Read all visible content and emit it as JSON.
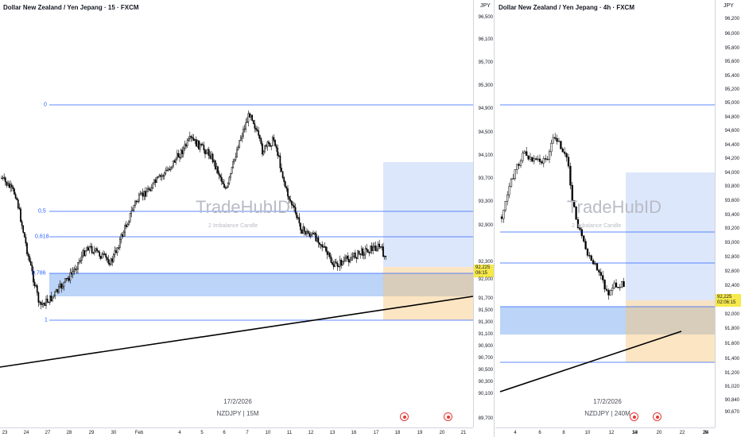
{
  "left": {
    "title": "Dollar New Zealand / Yen Jepang · 15 · FXCM",
    "currency": "JPY",
    "current_price": "92,225",
    "countdown": "06:15",
    "watermark": "TradeHubID",
    "watermark_sub": "2 Imbalance Candle",
    "date_label": "17/2/2026",
    "symbol_label": "NZDJPY | 15M",
    "fib": {
      "level_0": "0",
      "level_05": "0,5",
      "level_0618": "0,618",
      "level_0786": "0,786",
      "level_1": "1"
    },
    "price_ticks": [
      "96,500",
      "96,100",
      "95,700",
      "95,300",
      "94,900",
      "94,500",
      "94,100",
      "93,700",
      "93,300",
      "92,900",
      "92,300",
      "91,700",
      "91,300",
      "90,900",
      "90,500",
      "90,100",
      "89,700",
      "92,000",
      "91,500",
      "91,100",
      "90,700",
      "90,300"
    ],
    "time_ticks": [
      "23",
      "24",
      "27",
      "28",
      "29",
      "30",
      "Feb",
      "4",
      "5",
      "6",
      "7",
      "10",
      "11",
      "12",
      "13",
      "16",
      "17",
      "18",
      "19",
      "20",
      "21"
    ],
    "colors": {
      "fib_line": "#2962ff",
      "blue_zone": "#bbd4f7",
      "orange_zone": "#fbe0b8",
      "trend": "#000000"
    }
  },
  "right": {
    "title": "Dollar New Zealand / Yen Jepang · 4h · FXCM",
    "currency": "JPY",
    "current_price": "92,225",
    "countdown": "02:06:15",
    "watermark": "TradeHubID",
    "watermark_sub": "2 Imbalance Candle",
    "date_label": "17/2/2026",
    "symbol_label": "NZDJPY | 240M",
    "price_ticks": [
      "96,200",
      "96,000",
      "95,800",
      "95,600",
      "95,400",
      "95,200",
      "95,000",
      "94,800",
      "94,600",
      "94,400",
      "94,200",
      "94,000",
      "93,800",
      "93,600",
      "93,400",
      "93,200",
      "93,000",
      "92,800",
      "92,600",
      "92,400",
      "92,000",
      "91,800",
      "91,600",
      "91,400",
      "91,200",
      "91,020",
      "90,840",
      "90,670"
    ],
    "time_ticks": [
      "4",
      "6",
      "8",
      "10",
      "12",
      "14",
      "18",
      "20",
      "22",
      "24",
      "26"
    ]
  }
}
